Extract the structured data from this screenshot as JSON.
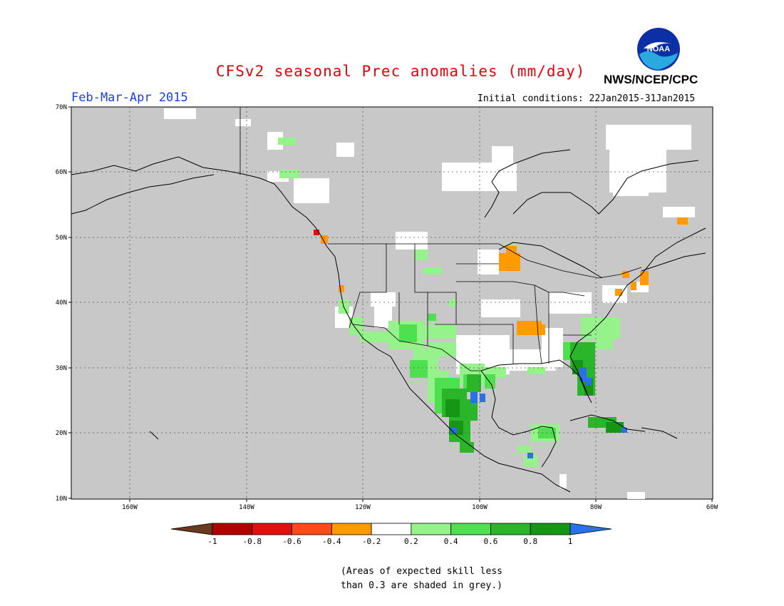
{
  "header": {
    "title": "CFSv2 seasonal Prec anomalies (mm/day)",
    "period": "Feb-Mar-Apr 2015",
    "initial_conditions": "Initial conditions: 22Jan2015-31Jan2015",
    "agency": "NWS/NCEP/CPC",
    "logo_text": "NOAA"
  },
  "colors": {
    "title": "#e8000b",
    "period": "#1a3fe0",
    "grey_mask": "#c8c8c8",
    "ocean": "#c8c8c8"
  },
  "map": {
    "lat_labels": [
      "70N",
      "60N",
      "50N",
      "40N",
      "30N",
      "20N",
      "10N"
    ],
    "lon_labels": [
      "160W",
      "140W",
      "120W",
      "100W",
      "80W",
      "60W"
    ],
    "lat_range": [
      10,
      70
    ],
    "lon_range": [
      -170,
      -60
    ],
    "grid": "dotted"
  },
  "legend": {
    "tick_labels": [
      "-1",
      "-0.8",
      "-0.6",
      "-0.4",
      "-0.2",
      "0.2",
      "0.4",
      "0.6",
      "0.8",
      "1"
    ],
    "bins": [
      {
        "color": "#6b3a1e"
      },
      {
        "color": "#b00000"
      },
      {
        "color": "#e01010"
      },
      {
        "color": "#ff4a1a"
      },
      {
        "color": "#ff9a00"
      },
      {
        "color": "#ffffff"
      },
      {
        "color": "#96f28a"
      },
      {
        "color": "#4ee04e"
      },
      {
        "color": "#2bb52b"
      },
      {
        "color": "#159615"
      },
      {
        "color": "#2a70e8"
      }
    ]
  },
  "note": {
    "line1": "(Areas of expected skill less",
    "line2": "than 0.3 are shaded in grey.)"
  }
}
